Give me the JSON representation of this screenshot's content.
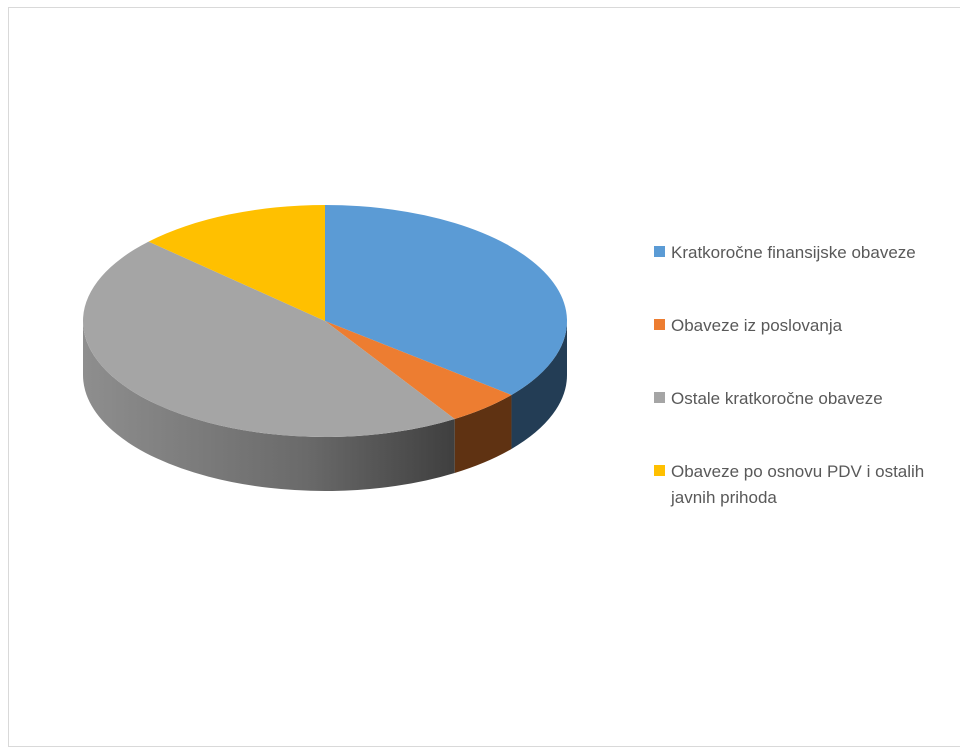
{
  "chart_data": {
    "type": "pie",
    "style": "3d",
    "title": "",
    "categories": [
      "Kratkoročne finansijske obaveze",
      "Obaveze iz poslovanja",
      "Ostale kratkoročne obaveze",
      "Obaveze po osnovu PDV i ostalih javnih prihoda"
    ],
    "values": [
      36,
      5,
      46,
      13
    ],
    "value_unit": "percent (estimated)",
    "colors": [
      "#5b9bd5",
      "#ed7d31",
      "#a5a5a5",
      "#ffc000"
    ],
    "legend_position": "right"
  },
  "legend": {
    "items": [
      {
        "label": "Kratkoročne finansijske obaveze",
        "color": "#5b9bd5"
      },
      {
        "label": "Obaveze iz poslovanja",
        "color": "#ed7d31"
      },
      {
        "label": "Ostale kratkoročne obaveze",
        "color": "#a5a5a5"
      },
      {
        "label": "Obaveze po osnovu PDV i ostalih javnih prihoda",
        "color": "#ffc000"
      }
    ]
  }
}
